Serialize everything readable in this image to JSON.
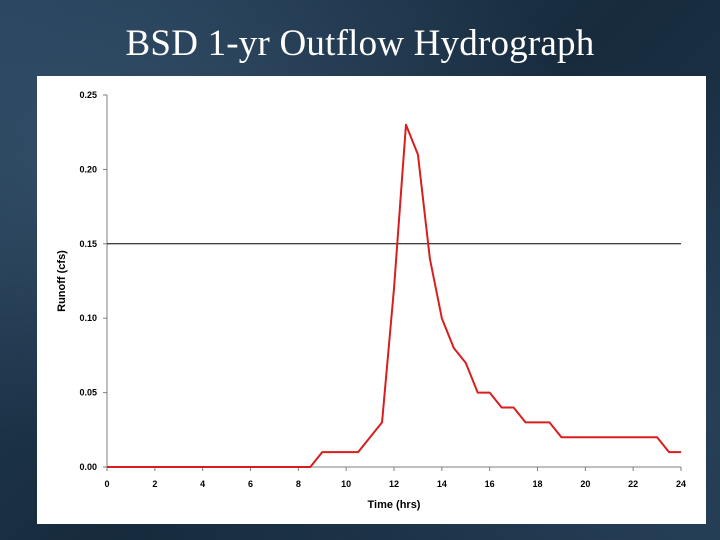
{
  "slide": {
    "title": "BSD 1-yr Outflow Hydrograph"
  },
  "chart_data": {
    "type": "line",
    "title": "",
    "xlabel": "Time (hrs)",
    "ylabel": "Runoff (cfs)",
    "xlim": [
      0,
      24
    ],
    "ylim": [
      0,
      0.25
    ],
    "xticks": [
      0,
      2,
      4,
      6,
      8,
      10,
      12,
      14,
      16,
      18,
      20,
      22,
      24
    ],
    "yticks": [
      "0.00",
      "0.05",
      "0.10",
      "0.15",
      "0.20",
      "0.25"
    ],
    "grid": false,
    "reference_line": {
      "y": 0.15,
      "color": "#000000"
    },
    "series": [
      {
        "color": "#d81e1e",
        "x": [
          0,
          8.5,
          9.0,
          10.5,
          11.5,
          12.0,
          12.5,
          13.0,
          13.5,
          14.0,
          14.5,
          15.0,
          15.5,
          16.0,
          16.5,
          17.0,
          17.5,
          18.0,
          18.5,
          19.0,
          23.0,
          23.5,
          24.0
        ],
        "y": [
          0,
          0,
          0.01,
          0.01,
          0.03,
          0.12,
          0.23,
          0.21,
          0.14,
          0.1,
          0.08,
          0.07,
          0.05,
          0.05,
          0.04,
          0.04,
          0.03,
          0.03,
          0.03,
          0.02,
          0.02,
          0.01,
          0.01
        ]
      }
    ]
  }
}
